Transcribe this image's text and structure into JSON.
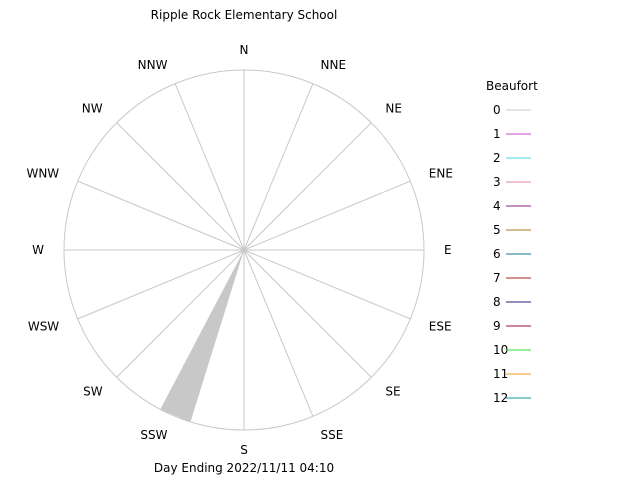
{
  "chart_data": {
    "type": "wind_rose",
    "title": "Ripple Rock Elementary School",
    "xlabel": "Day Ending 2022/11/11 04:10",
    "directions": [
      "N",
      "NNE",
      "NE",
      "ENE",
      "E",
      "ESE",
      "SE",
      "SSE",
      "S",
      "SSW",
      "SW",
      "WSW",
      "W",
      "WNW",
      "NW",
      "NNW"
    ],
    "frequency_fraction": [
      0,
      0,
      0,
      0,
      0,
      0,
      0,
      0,
      0,
      1,
      0,
      0,
      0,
      0,
      0,
      0
    ],
    "beaufort_fraction_of_radius": {
      "SSW": [
        {
          "beaufort": 0,
          "fraction": 1.0
        }
      ]
    },
    "grid": true,
    "legend": {
      "title": "Beaufort",
      "position": "right",
      "entries": [
        {
          "label": "0",
          "color": "#c8c8c8"
        },
        {
          "label": "1",
          "color": "#cc44cc"
        },
        {
          "label": "2",
          "color": "#44dddd"
        },
        {
          "label": "3",
          "color": "#dd88aa"
        },
        {
          "label": "4",
          "color": "#882288"
        },
        {
          "label": "5",
          "color": "#aa7722"
        },
        {
          "label": "6",
          "color": "#117799"
        },
        {
          "label": "7",
          "color": "#aa2222"
        },
        {
          "label": "8",
          "color": "#222277"
        },
        {
          "label": "9",
          "color": "#991133"
        },
        {
          "label": "10",
          "color": "#33dd33"
        },
        {
          "label": "11",
          "color": "#ee9922"
        },
        {
          "label": "12",
          "color": "#119999"
        }
      ]
    }
  }
}
